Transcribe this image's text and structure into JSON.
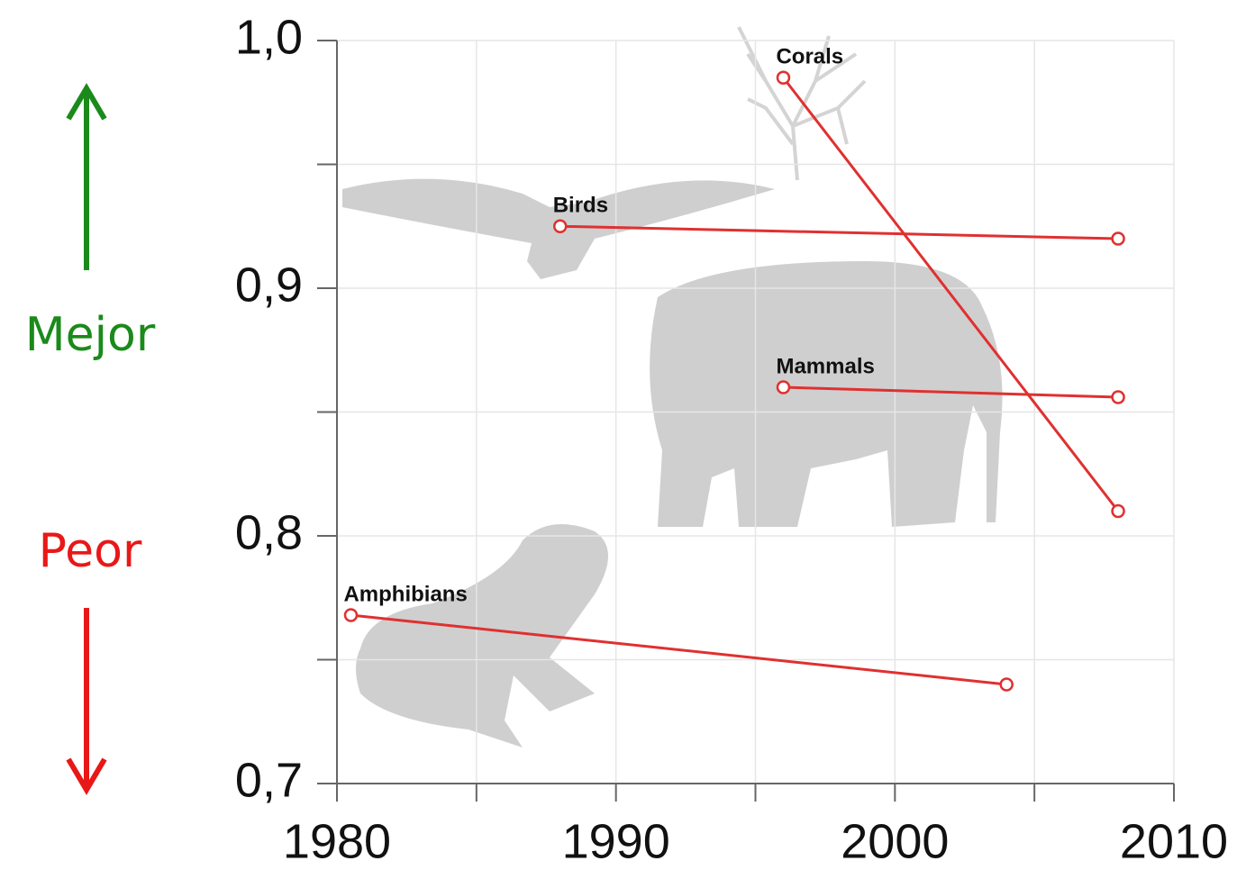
{
  "chart_data": {
    "type": "line",
    "series": [
      {
        "name": "Corals",
        "color": "#e03030",
        "x": [
          1996,
          2008
        ],
        "values": [
          0.985,
          0.81
        ]
      },
      {
        "name": "Birds",
        "color": "#e03030",
        "x": [
          1988,
          2008
        ],
        "values": [
          0.925,
          0.92
        ]
      },
      {
        "name": "Mammals",
        "color": "#e03030",
        "x": [
          1996,
          2008
        ],
        "values": [
          0.86,
          0.856
        ]
      },
      {
        "name": "Amphibians",
        "color": "#e03030",
        "x": [
          1980.5,
          2004
        ],
        "values": [
          0.768,
          0.74
        ]
      }
    ],
    "xlim": [
      1980,
      2010
    ],
    "xticks": [
      1980,
      1990,
      2000,
      2010
    ],
    "x_minor_ticks": [
      1985,
      1995,
      2005
    ],
    "ylim": [
      0.7,
      1.0
    ],
    "yticks": [
      {
        "value": 0.7,
        "label": "0,7"
      },
      {
        "value": 0.8,
        "label": "0,8"
      },
      {
        "value": 0.9,
        "label": "0,9"
      },
      {
        "value": 1.0,
        "label": "1,0"
      }
    ],
    "y_minor_ticks": [
      0.75,
      0.85,
      0.95
    ],
    "grid": true,
    "annotations": [
      {
        "text": "Mejor",
        "color": "#1a8a1a",
        "direction": "up"
      },
      {
        "text": "Peor",
        "color": "#e81818",
        "direction": "down"
      }
    ]
  }
}
